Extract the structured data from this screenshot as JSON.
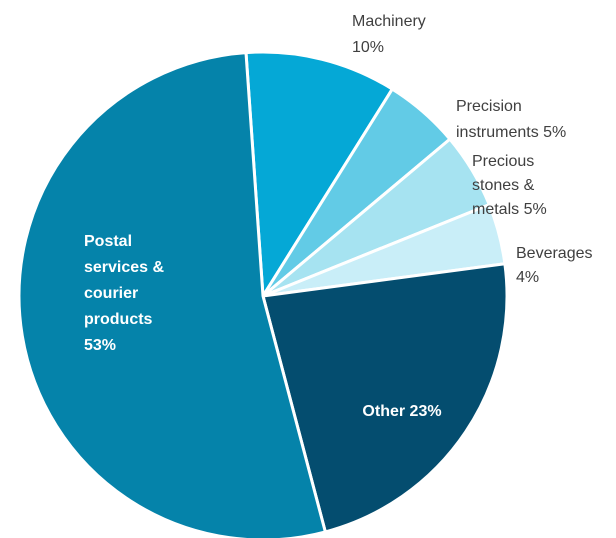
{
  "chart_data": {
    "type": "pie",
    "title": "",
    "start_angle_deg": -4,
    "direction": "clockwise",
    "slices": [
      {
        "key": "machinery",
        "lines": [
          "Machinery",
          "10%"
        ],
        "value": 10,
        "color": "#05A8D6",
        "label_position": "outside"
      },
      {
        "key": "precision-instruments",
        "lines": [
          "Precision",
          "instruments 5%"
        ],
        "value": 5,
        "color": "#62CBE6",
        "label_position": "outside"
      },
      {
        "key": "precious-stones-metals",
        "lines": [
          "Precious",
          "stones &",
          "metals 5%"
        ],
        "value": 5,
        "color": "#A6E3F1",
        "label_position": "outside"
      },
      {
        "key": "beverages",
        "lines": [
          "Beverages",
          "4%"
        ],
        "value": 4,
        "color": "#C9EEF8",
        "label_position": "outside"
      },
      {
        "key": "other",
        "lines": [
          "Other 23%"
        ],
        "value": 23,
        "color": "#044D6F",
        "label_position": "inside"
      },
      {
        "key": "postal-services-courier",
        "lines": [
          "Postal",
          "services &",
          "courier",
          "products",
          "53%"
        ],
        "value": 53,
        "color": "#0583AA",
        "label_position": "inside"
      }
    ]
  }
}
